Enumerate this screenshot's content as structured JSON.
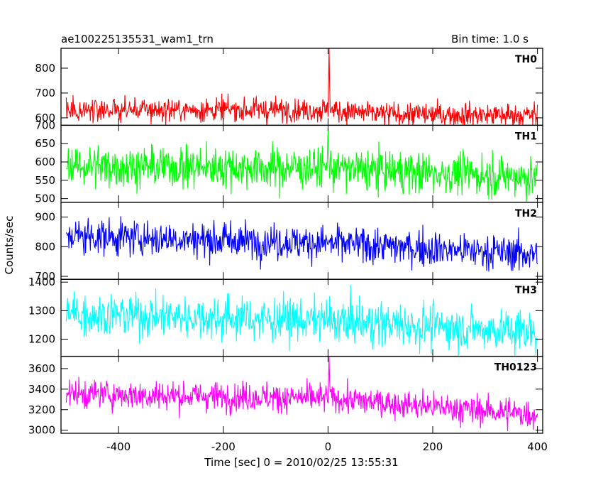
{
  "header": {
    "title": "ae100225135531_wam1_trn",
    "bin_time": "Bin time: 1.0 s"
  },
  "chart_data": {
    "type": "line",
    "title": "ae100225135531_wam1_trn",
    "subtitle": "Bin time: 1.0 s",
    "xlabel": "Time [sec] 0 = 2010/02/25 13:55:31",
    "ylabel": "Counts/sec",
    "xlim": [
      -510,
      410
    ],
    "xticks": [
      -400,
      -200,
      0,
      200,
      400
    ],
    "x_start": -500,
    "x_end": 400,
    "x_step": 1,
    "grid": false,
    "panels": [
      {
        "name": "TH0",
        "color": "#ff0000",
        "ylim": [
          570,
          880
        ],
        "yticks": [
          600,
          700,
          800
        ],
        "segments": [
          {
            "x": -500,
            "mean": 632,
            "spread": 24
          },
          {
            "x": 0,
            "mean": 632,
            "spread": 24
          },
          {
            "x": 100,
            "mean": 615,
            "spread": 24
          },
          {
            "x": 400,
            "mean": 610,
            "spread": 24
          }
        ],
        "peak": {
          "x": 2,
          "y": 880
        }
      },
      {
        "name": "TH1",
        "color": "#00ff00",
        "ylim": [
          490,
          700
        ],
        "yticks": [
          500,
          550,
          600,
          650,
          700
        ],
        "segments": [
          {
            "x": -500,
            "mean": 590,
            "spread": 28
          },
          {
            "x": 0,
            "mean": 583,
            "spread": 28
          },
          {
            "x": 400,
            "mean": 558,
            "spread": 28
          }
        ],
        "peak": {
          "x": 0,
          "y": 690
        }
      },
      {
        "name": "TH2",
        "color": "#0000ff",
        "ylim": [
          690,
          950
        ],
        "yticks": [
          700,
          800,
          900
        ],
        "segments": [
          {
            "x": -500,
            "mean": 838,
            "spread": 30
          },
          {
            "x": 0,
            "mean": 812,
            "spread": 30
          },
          {
            "x": 400,
            "mean": 775,
            "spread": 30
          }
        ]
      },
      {
        "name": "TH3",
        "color": "#00ffff",
        "ylim": [
          1140,
          1410
        ],
        "yticks": [
          1200,
          1300,
          1400
        ],
        "segments": [
          {
            "x": -500,
            "mean": 1290,
            "spread": 38
          },
          {
            "x": 0,
            "mean": 1265,
            "spread": 38
          },
          {
            "x": 400,
            "mean": 1225,
            "spread": 38
          }
        ]
      },
      {
        "name": "TH0123",
        "color": "#ff00ff",
        "ylim": [
          2970,
          3720
        ],
        "yticks": [
          3000,
          3200,
          3400,
          3600
        ],
        "segments": [
          {
            "x": -500,
            "mean": 3355,
            "spread": 70
          },
          {
            "x": 0,
            "mean": 3310,
            "spread": 70
          },
          {
            "x": 400,
            "mean": 3150,
            "spread": 70
          }
        ],
        "peak": {
          "x": 2,
          "y": 3720
        }
      }
    ]
  }
}
